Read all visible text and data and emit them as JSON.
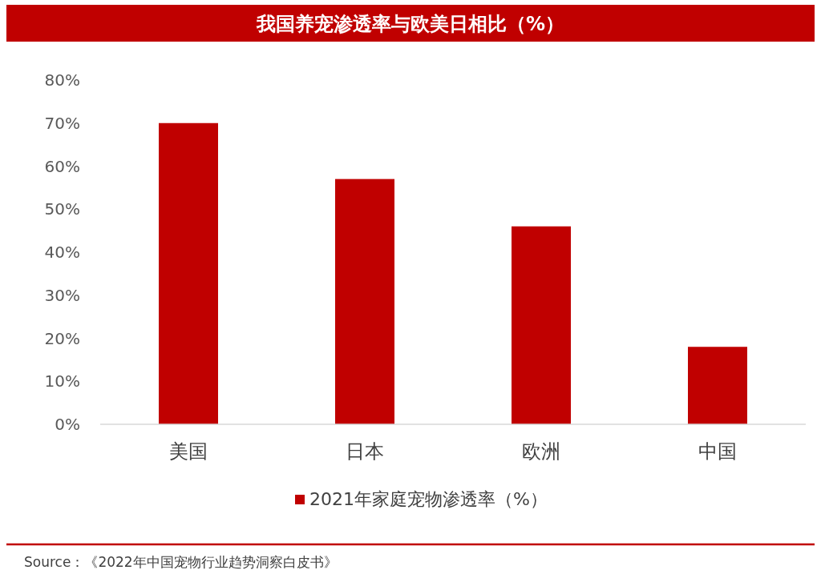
{
  "chart_data": {
    "type": "bar",
    "title": "我国养宠渗透率与欧美日相比（%）",
    "categories": [
      "美国",
      "日本",
      "欧洲",
      "中国"
    ],
    "series": [
      {
        "name": "2021年家庭宠物渗透率（%）",
        "color": "#c00000",
        "values": [
          70,
          57,
          46,
          18
        ]
      }
    ],
    "ylim": [
      0,
      80
    ],
    "yticks": [
      {
        "value": 0,
        "label": "0%"
      },
      {
        "value": 10,
        "label": "10%"
      },
      {
        "value": 20,
        "label": "20%"
      },
      {
        "value": 30,
        "label": "30%"
      },
      {
        "value": 40,
        "label": "40%"
      },
      {
        "value": 50,
        "label": "50%"
      },
      {
        "value": 60,
        "label": "60%"
      },
      {
        "value": 70,
        "label": "70%"
      },
      {
        "value": 80,
        "label": "80%"
      }
    ],
    "legend": "bottom",
    "annotations": [
      "Source：《2022年中国宠物行业趋势洞察白皮书》"
    ]
  }
}
